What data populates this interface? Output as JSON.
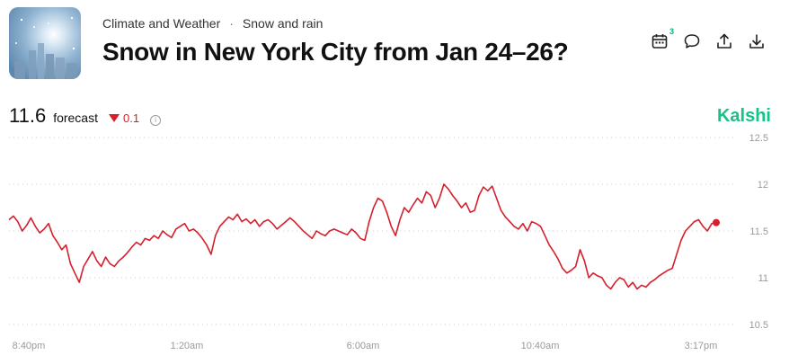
{
  "header": {
    "breadcrumb": [
      "Climate and Weather",
      "Snow and rain"
    ],
    "title": "Snow in New York City from Jan 24–26?",
    "calendar_badge": "3",
    "icons": [
      "calendar-icon",
      "comment-icon",
      "share-icon",
      "download-icon"
    ]
  },
  "forecast": {
    "value": "11.6",
    "label": "forecast",
    "change": "0.1",
    "direction": "down"
  },
  "brand": "Kalshi",
  "colors": {
    "line": "#d61f2c",
    "brand": "#15c288",
    "down": "#d61f2c",
    "grid": "#cfcfcf"
  },
  "chart_data": {
    "type": "line",
    "ylim": [
      10.5,
      12.5
    ],
    "yticks": [
      "12.5",
      "12",
      "11.5",
      "11",
      "10.5"
    ],
    "xticks": [
      "8:40pm",
      "1:20am",
      "6:00am",
      "10:40am",
      "3:17pm"
    ],
    "series": [
      {
        "values": [
          11.62,
          11.66,
          11.6,
          11.5,
          11.56,
          11.64,
          11.55,
          11.48,
          11.52,
          11.58,
          11.45,
          11.38,
          11.3,
          11.35,
          11.15,
          11.05,
          10.95,
          11.12,
          11.2,
          11.28,
          11.18,
          11.12,
          11.22,
          11.15,
          11.12,
          11.18,
          11.22,
          11.27,
          11.33,
          11.38,
          11.35,
          11.42,
          11.4,
          11.45,
          11.42,
          11.5,
          11.46,
          11.43,
          11.52,
          11.55,
          11.58,
          11.5,
          11.52,
          11.48,
          11.42,
          11.35,
          11.25,
          11.45,
          11.55,
          11.6,
          11.65,
          11.62,
          11.68,
          11.6,
          11.63,
          11.58,
          11.62,
          11.55,
          11.6,
          11.62,
          11.58,
          11.52,
          11.56,
          11.6,
          11.64,
          11.6,
          11.55,
          11.5,
          11.46,
          11.42,
          11.5,
          11.47,
          11.45,
          11.5,
          11.52,
          11.5,
          11.48,
          11.46,
          11.52,
          11.48,
          11.42,
          11.4,
          11.6,
          11.75,
          11.85,
          11.82,
          11.7,
          11.55,
          11.45,
          11.62,
          11.75,
          11.7,
          11.78,
          11.85,
          11.8,
          11.92,
          11.88,
          11.75,
          11.85,
          12.0,
          11.95,
          11.88,
          11.82,
          11.75,
          11.8,
          11.7,
          11.72,
          11.88,
          11.97,
          11.93,
          11.98,
          11.85,
          11.72,
          11.65,
          11.6,
          11.55,
          11.52,
          11.58,
          11.5,
          11.6,
          11.58,
          11.55,
          11.45,
          11.35,
          11.28,
          11.2,
          11.1,
          11.05,
          11.08,
          11.12,
          11.3,
          11.18,
          11.0,
          11.05,
          11.02,
          11.0,
          10.92,
          10.88,
          10.95,
          11.0,
          10.98,
          10.9,
          10.95,
          10.88,
          10.92,
          10.9,
          10.95,
          10.98,
          11.02,
          11.05,
          11.08,
          11.1,
          11.25,
          11.4,
          11.5,
          11.55,
          11.6,
          11.62,
          11.55,
          11.5,
          11.58,
          11.59
        ]
      }
    ]
  }
}
